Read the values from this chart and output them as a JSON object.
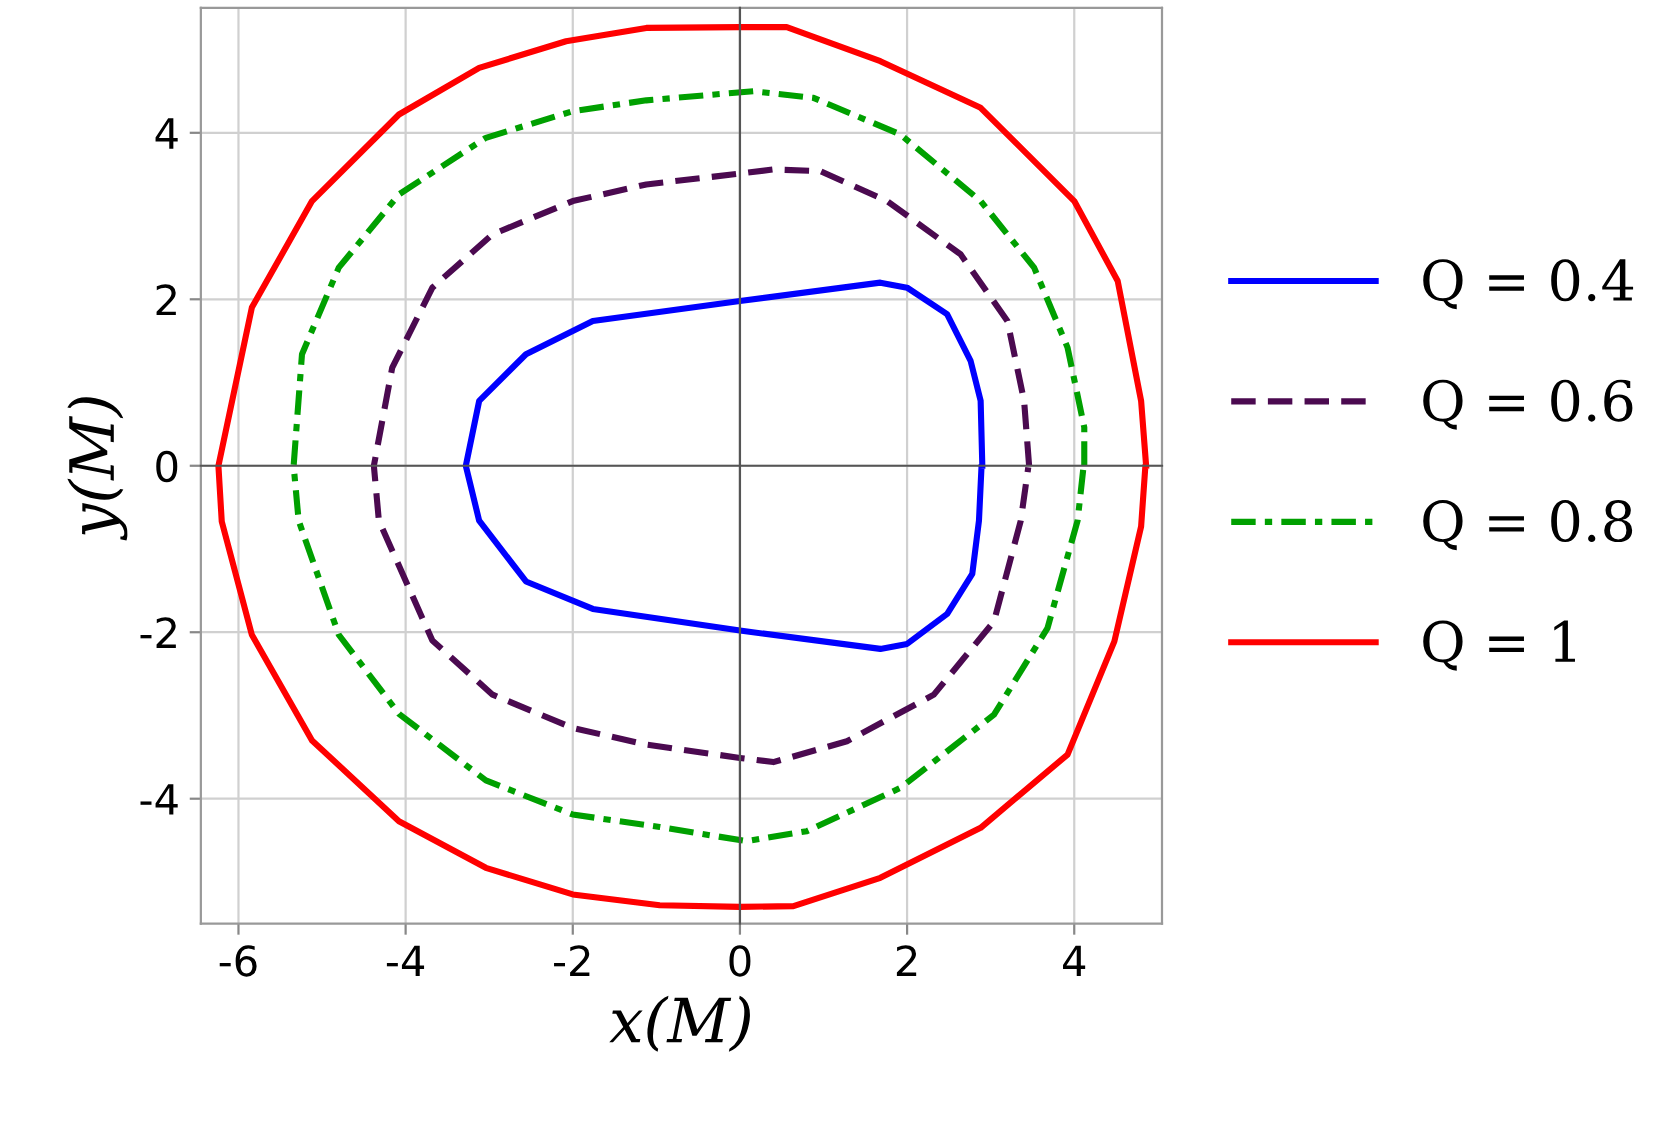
{
  "chart_data": {
    "type": "line",
    "xlabel": "x(M)",
    "ylabel": "y(M)",
    "xlim": [
      -6.45,
      5.05
    ],
    "ylim": [
      -5.5,
      5.5
    ],
    "xticks": [
      -6,
      -4,
      -2,
      0,
      2,
      4
    ],
    "yticks": [
      -4,
      -2,
      0,
      2,
      4
    ],
    "grid": true,
    "legend": "right",
    "marker": "none",
    "series": [
      {
        "name": "Q = 0.4",
        "color": "#0000ff",
        "line_style": "solid",
        "x": [
          2.9,
          2.88,
          2.76,
          2.48,
          2.0,
          1.68,
          0,
          -1.76,
          -2.56,
          -3.12,
          -3.28,
          -3.12,
          -2.56,
          -1.76,
          0,
          1.68,
          2.0,
          2.48,
          2.78,
          2.86,
          2.89
        ],
        "values": [
          0,
          0.78,
          1.26,
          1.82,
          2.14,
          2.2,
          1.98,
          1.74,
          1.34,
          0.78,
          0,
          -0.66,
          -1.39,
          -1.72,
          -1.98,
          -2.2,
          -2.14,
          -1.78,
          -1.3,
          -0.66,
          -0.02
        ]
      },
      {
        "name": "Q = 0.6",
        "color": "#4b0a50",
        "line_style": "dashed",
        "x": [
          3.46,
          3.4,
          3.2,
          2.64,
          1.76,
          0.96,
          0.4,
          0,
          -1.12,
          -2,
          -2.96,
          -3.68,
          -4.16,
          -4.38,
          -4.32,
          -3.68,
          -2.96,
          -2,
          -1.12,
          0,
          0.4,
          1.28,
          2.32,
          3.04,
          3.36,
          3.45
        ],
        "values": [
          0,
          0.78,
          1.74,
          2.54,
          3.18,
          3.54,
          3.56,
          3.51,
          3.38,
          3.18,
          2.78,
          2.14,
          1.18,
          0,
          -0.66,
          -2.1,
          -2.75,
          -3.15,
          -3.35,
          -3.51,
          -3.56,
          -3.31,
          -2.75,
          -1.87,
          -0.66,
          -0.02
        ]
      },
      {
        "name": "Q = 0.8",
        "color": "#00a000",
        "line_style": "dashdot",
        "x": [
          4.12,
          4.12,
          3.92,
          3.52,
          2.88,
          1.92,
          0.88,
          0.16,
          -1.12,
          -2,
          -3.04,
          -4.08,
          -4.8,
          -5.24,
          -5.34,
          -5.28,
          -4.8,
          -4.08,
          -3.04,
          -2,
          -0.96,
          0.08,
          0.8,
          1.92,
          3.04,
          3.68,
          4.04,
          4.11
        ],
        "values": [
          0,
          0.46,
          1.42,
          2.38,
          3.18,
          3.98,
          4.42,
          4.5,
          4.39,
          4.26,
          3.94,
          3.26,
          2.38,
          1.34,
          0,
          -0.66,
          -2.03,
          -2.98,
          -3.78,
          -4.19,
          -4.34,
          -4.51,
          -4.39,
          -3.87,
          -2.99,
          -1.95,
          -0.66,
          -0.02
        ]
      },
      {
        "name": "Q = 1",
        "color": "#ff0000",
        "line_style": "solid",
        "x": [
          4.86,
          4.8,
          4.52,
          4.0,
          2.88,
          1.68,
          0.56,
          0,
          -1.12,
          -2.08,
          -3.12,
          -4.08,
          -5.12,
          -5.84,
          -6.24,
          -6.2,
          -5.84,
          -5.12,
          -4.08,
          -3.04,
          -2,
          -0.96,
          0,
          0.64,
          1.68,
          2.88,
          3.92,
          4.48,
          4.8,
          4.85
        ],
        "values": [
          0,
          0.78,
          2.22,
          3.18,
          4.3,
          4.86,
          5.27,
          5.27,
          5.26,
          5.1,
          4.78,
          4.22,
          3.18,
          1.9,
          0,
          -0.67,
          -2.03,
          -3.3,
          -4.27,
          -4.83,
          -5.15,
          -5.28,
          -5.3,
          -5.29,
          -4.95,
          -4.35,
          -3.47,
          -2.11,
          -0.73,
          -0.02
        ]
      }
    ]
  }
}
